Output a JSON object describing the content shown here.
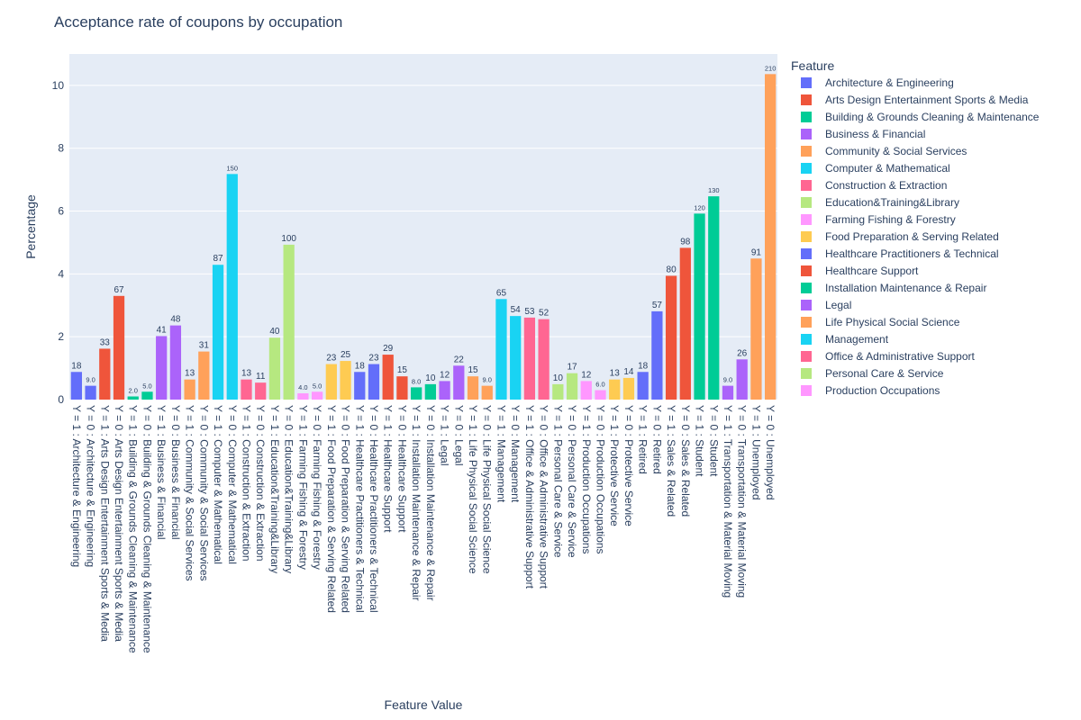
{
  "chart_data": {
    "type": "bar",
    "title": "Acceptance rate of coupons by occupation",
    "xlabel": "Feature Value",
    "ylabel": "Percentage",
    "ylim": [
      0,
      11
    ],
    "yticks": [
      0,
      2,
      4,
      6,
      8,
      10
    ],
    "grid": true,
    "legend_title": "Feature",
    "legend_position": "right",
    "series": [
      {
        "name": "Architecture & Engineering",
        "color": "#636efa"
      },
      {
        "name": "Arts Design Entertainment Sports & Media",
        "color": "#ef553b"
      },
      {
        "name": "Building & Grounds Cleaning & Maintenance",
        "color": "#00cc96"
      },
      {
        "name": "Business & Financial",
        "color": "#ab63fa"
      },
      {
        "name": "Community & Social Services",
        "color": "#ffa15a"
      },
      {
        "name": "Computer & Mathematical",
        "color": "#19d3f3"
      },
      {
        "name": "Construction & Extraction",
        "color": "#ff6692"
      },
      {
        "name": "Education&Training&Library",
        "color": "#b6e880"
      },
      {
        "name": "Farming Fishing & Forestry",
        "color": "#ff97ff"
      },
      {
        "name": "Food Preparation & Serving Related",
        "color": "#fecb52"
      },
      {
        "name": "Healthcare Practitioners & Technical",
        "color": "#636efa"
      },
      {
        "name": "Healthcare Support",
        "color": "#ef553b"
      },
      {
        "name": "Installation Maintenance & Repair",
        "color": "#00cc96"
      },
      {
        "name": "Legal",
        "color": "#ab63fa"
      },
      {
        "name": "Life Physical Social Science",
        "color": "#ffa15a"
      },
      {
        "name": "Management",
        "color": "#19d3f3"
      },
      {
        "name": "Office & Administrative Support",
        "color": "#ff6692"
      },
      {
        "name": "Personal Care & Service",
        "color": "#b6e880"
      },
      {
        "name": "Production Occupations",
        "color": "#ff97ff"
      }
    ],
    "bars": [
      {
        "category": "Y = 1 : Architecture & Engineering",
        "series": 0,
        "value": 0.88,
        "label": "18"
      },
      {
        "category": "Y = 0 : Architecture & Engineering",
        "series": 0,
        "value": 0.44,
        "label": "9.0"
      },
      {
        "category": "Y = 1 : Arts Design Entertainment Sports & Media",
        "series": 1,
        "value": 1.62,
        "label": "33"
      },
      {
        "category": "Y = 0 : Arts Design Entertainment Sports & Media",
        "series": 1,
        "value": 3.3,
        "label": "67"
      },
      {
        "category": "Y = 1 : Building & Grounds Cleaning & Maintenance",
        "series": 2,
        "value": 0.1,
        "label": "2.0"
      },
      {
        "category": "Y = 0 : Building & Grounds Cleaning & Maintenance",
        "series": 2,
        "value": 0.25,
        "label": "5.0"
      },
      {
        "category": "Y = 1 : Business & Financial",
        "series": 3,
        "value": 2.02,
        "label": "41"
      },
      {
        "category": "Y = 0 : Business & Financial",
        "series": 3,
        "value": 2.36,
        "label": "48"
      },
      {
        "category": "Y = 1 : Community & Social Services",
        "series": 4,
        "value": 0.64,
        "label": "13"
      },
      {
        "category": "Y = 0 : Community & Social Services",
        "series": 4,
        "value": 1.53,
        "label": "31"
      },
      {
        "category": "Y = 1 : Computer & Mathematical",
        "series": 5,
        "value": 4.29,
        "label": "87"
      },
      {
        "category": "Y = 0 : Computer & Mathematical",
        "series": 5,
        "value": 7.18,
        "label": "150"
      },
      {
        "category": "Y = 1 : Construction & Extraction",
        "series": 6,
        "value": 0.64,
        "label": "13"
      },
      {
        "category": "Y = 0 : Construction & Extraction",
        "series": 6,
        "value": 0.54,
        "label": "11"
      },
      {
        "category": "Y = 1 : Education&Training&Library",
        "series": 7,
        "value": 1.97,
        "label": "40"
      },
      {
        "category": "Y = 0 : Education&Training&Library",
        "series": 7,
        "value": 4.93,
        "label": "100"
      },
      {
        "category": "Y = 1 : Farming Fishing & Forestry",
        "series": 8,
        "value": 0.2,
        "label": "4.0"
      },
      {
        "category": "Y = 0 : Farming Fishing & Forestry",
        "series": 8,
        "value": 0.25,
        "label": "5.0"
      },
      {
        "category": "Y = 1 : Food Preparation & Serving Related",
        "series": 9,
        "value": 1.13,
        "label": "23"
      },
      {
        "category": "Y = 0 : Food Preparation & Serving Related",
        "series": 9,
        "value": 1.23,
        "label": "25"
      },
      {
        "category": "Y = 1 : Healthcare Practitioners & Technical",
        "series": 10,
        "value": 0.88,
        "label": "18"
      },
      {
        "category": "Y = 0 : Healthcare Practitioners & Technical",
        "series": 10,
        "value": 1.13,
        "label": "23"
      },
      {
        "category": "Y = 1 : Healthcare Support",
        "series": 11,
        "value": 1.43,
        "label": "29"
      },
      {
        "category": "Y = 0 : Healthcare Support",
        "series": 11,
        "value": 0.74,
        "label": "15"
      },
      {
        "category": "Y = 1 : Installation Maintenance & Repair",
        "series": 12,
        "value": 0.39,
        "label": "8.0"
      },
      {
        "category": "Y = 0 : Installation Maintenance & Repair",
        "series": 12,
        "value": 0.49,
        "label": "10"
      },
      {
        "category": "Y = 1 : Legal",
        "series": 13,
        "value": 0.59,
        "label": "12"
      },
      {
        "category": "Y = 0 : Legal",
        "series": 13,
        "value": 1.08,
        "label": "22"
      },
      {
        "category": "Y = 1 : Life Physical Social Science",
        "series": 14,
        "value": 0.74,
        "label": "15"
      },
      {
        "category": "Y = 0 : Life Physical Social Science",
        "series": 14,
        "value": 0.44,
        "label": "9.0"
      },
      {
        "category": "Y = 1 : Management",
        "series": 15,
        "value": 3.2,
        "label": "65"
      },
      {
        "category": "Y = 0 : Management",
        "series": 15,
        "value": 2.66,
        "label": "54"
      },
      {
        "category": "Y = 1 : Office & Administrative Support",
        "series": 16,
        "value": 2.61,
        "label": "53"
      },
      {
        "category": "Y = 0 : Office & Administrative Support",
        "series": 16,
        "value": 2.56,
        "label": "52"
      },
      {
        "category": "Y = 1 : Personal Care & Service",
        "series": 17,
        "value": 0.49,
        "label": "10"
      },
      {
        "category": "Y = 0 : Personal Care & Service",
        "series": 17,
        "value": 0.84,
        "label": "17"
      },
      {
        "category": "Y = 1 : Production Occupations",
        "series": 18,
        "value": 0.59,
        "label": "12"
      },
      {
        "category": "Y = 0 : Production Occupations",
        "series": 18,
        "value": 0.3,
        "label": "6.0"
      },
      {
        "category": "Y = 1 : Protective Service",
        "series": 9,
        "value": 0.64,
        "label": "13"
      },
      {
        "category": "Y = 0 : Protective Service",
        "series": 9,
        "value": 0.69,
        "label": "14"
      },
      {
        "category": "Y = 1 : Retired",
        "series": 0,
        "value": 0.88,
        "label": "18"
      },
      {
        "category": "Y = 0 : Retired",
        "series": 0,
        "value": 2.81,
        "label": "57"
      },
      {
        "category": "Y = 1 : Sales & Related",
        "series": 1,
        "value": 3.94,
        "label": "80"
      },
      {
        "category": "Y = 0 : Sales & Related",
        "series": 1,
        "value": 4.83,
        "label": "98"
      },
      {
        "category": "Y = 1 : Student",
        "series": 2,
        "value": 5.92,
        "label": "120"
      },
      {
        "category": "Y = 0 : Student",
        "series": 2,
        "value": 6.47,
        "label": "130"
      },
      {
        "category": "Y = 1 : Transportation & Material Moving",
        "series": 3,
        "value": 0.44,
        "label": "9.0"
      },
      {
        "category": "Y = 0 : Transportation & Material Moving",
        "series": 3,
        "value": 1.28,
        "label": "26"
      },
      {
        "category": "Y = 1 : Unemployed",
        "series": 4,
        "value": 4.49,
        "label": "91"
      },
      {
        "category": "Y = 0 : Unemployed",
        "series": 4,
        "value": 10.36,
        "label": "210"
      }
    ]
  }
}
